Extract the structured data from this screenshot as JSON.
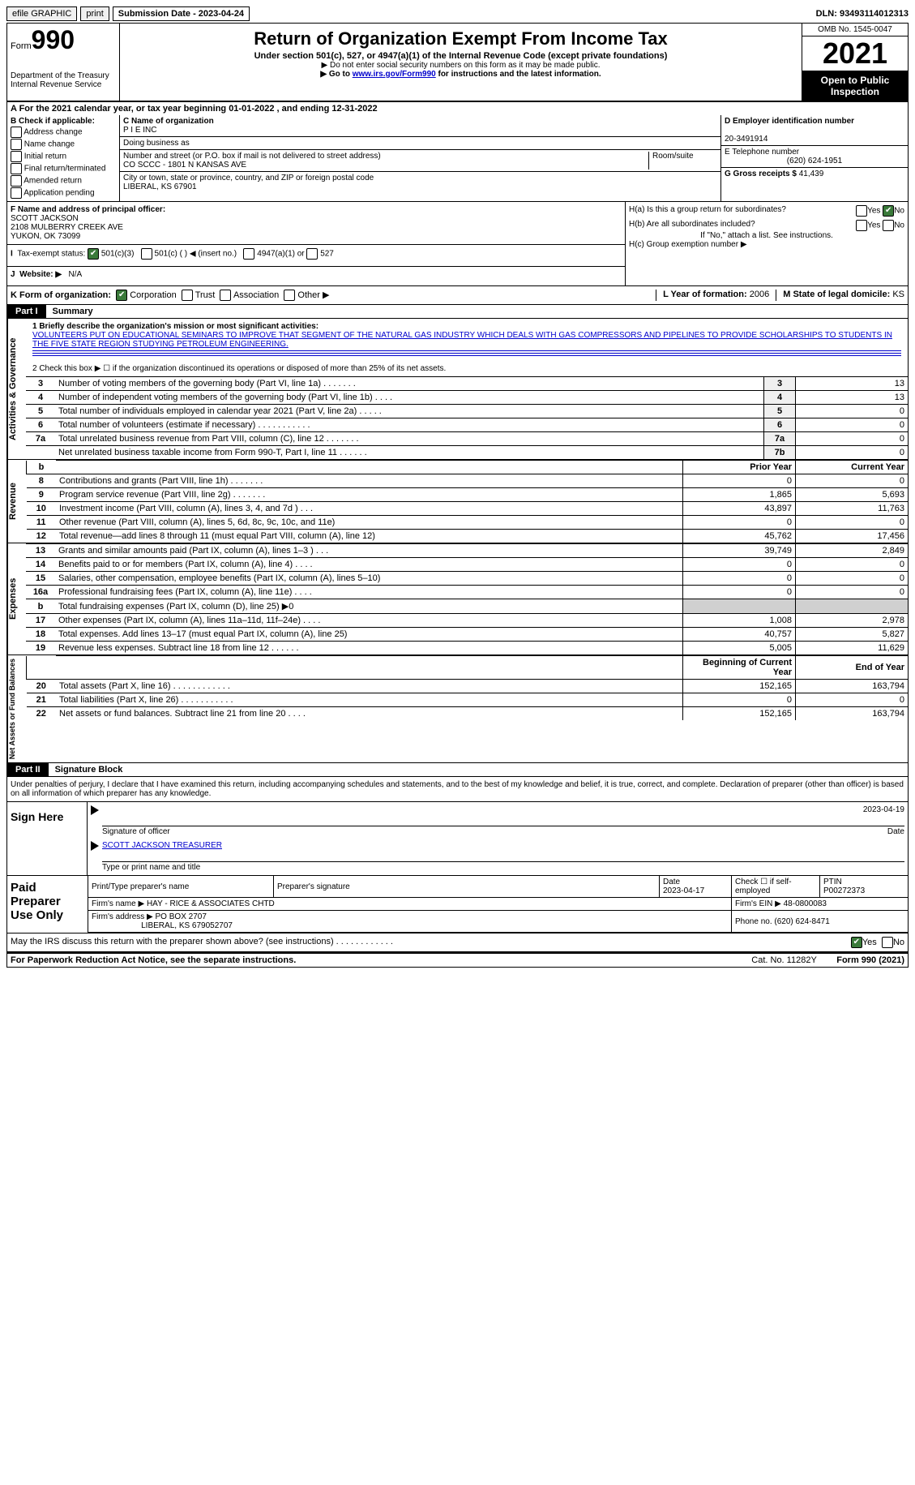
{
  "topbar": {
    "efile": "efile GRAPHIC",
    "print": "print",
    "submission_label": "Submission Date - 2023-04-24",
    "dln": "DLN: 93493114012313"
  },
  "header": {
    "form_label": "Form",
    "form_number": "990",
    "dept": "Department of the Treasury",
    "irs": "Internal Revenue Service",
    "title": "Return of Organization Exempt From Income Tax",
    "subtitle": "Under section 501(c), 527, or 4947(a)(1) of the Internal Revenue Code (except private foundations)",
    "note1": "▶ Do not enter social security numbers on this form as it may be made public.",
    "note2_pre": "▶ Go to ",
    "note2_link": "www.irs.gov/Form990",
    "note2_post": " for instructions and the latest information.",
    "omb": "OMB No. 1545-0047",
    "year": "2021",
    "open": "Open to Public Inspection"
  },
  "row_a": "A For the 2021 calendar year, or tax year beginning 01-01-2022   , and ending 12-31-2022",
  "section_b": {
    "label": "B Check if applicable:",
    "items": [
      "Address change",
      "Name change",
      "Initial return",
      "Final return/terminated",
      "Amended return",
      "Application pending"
    ]
  },
  "section_c": {
    "name_label": "C Name of organization",
    "name": "P I E INC",
    "dba_label": "Doing business as",
    "dba": "",
    "street_label": "Number and street (or P.O. box if mail is not delivered to street address)",
    "room_label": "Room/suite",
    "street": "CO SCCC - 1801 N KANSAS AVE",
    "city_label": "City or town, state or province, country, and ZIP or foreign postal code",
    "city": "LIBERAL, KS  67901"
  },
  "section_d": {
    "ein_label": "D Employer identification number",
    "ein": "20-3491914",
    "phone_label": "E Telephone number",
    "phone": "(620) 624-1951",
    "gross_label": "G Gross receipts $",
    "gross": "41,439"
  },
  "section_f": {
    "label": "F Name and address of principal officer:",
    "name": "SCOTT JACKSON",
    "street": "2108 MULBERRY CREEK AVE",
    "city": "YUKON, OK  73099",
    "tax_exempt_label": "Tax-exempt status:",
    "opt1": "501(c)(3)",
    "opt2": "501(c) (  ) ◀ (insert no.)",
    "opt3": "4947(a)(1) or",
    "opt4": "527",
    "website_label": "Website: ▶",
    "website": "N/A"
  },
  "section_h": {
    "ha": "H(a)  Is this a group return for subordinates?",
    "hb": "H(b)  Are all subordinates included?",
    "hb_note": "If \"No,\" attach a list. See instructions.",
    "hc": "H(c)  Group exemption number ▶",
    "yes": "Yes",
    "no": "No"
  },
  "section_k": {
    "label": "K Form of organization:",
    "opts": [
      "Corporation",
      "Trust",
      "Association",
      "Other ▶"
    ],
    "year_label": "L Year of formation:",
    "year": "2006",
    "state_label": "M State of legal domicile:",
    "state": "KS"
  },
  "part1": {
    "header": "Part I",
    "title": "Summary",
    "line1_label": "1  Briefly describe the organization's mission or most significant activities:",
    "mission": "VOLUNTEERS PUT ON EDUCATIONAL SEMINARS TO IMPROVE THAT SEGMENT OF THE NATURAL GAS INDUSTRY WHICH DEALS WITH GAS COMPRESSORS AND PIPELINES TO PROVIDE SCHOLARSHIPS TO STUDENTS IN THE FIVE STATE REGION STUDYING PETROLEUM ENGINEERING.",
    "line2": "2   Check this box ▶ ☐ if the organization discontinued its operations or disposed of more than 25% of its net assets.",
    "vlabels": {
      "gov": "Activities & Governance",
      "rev": "Revenue",
      "exp": "Expenses",
      "net": "Net Assets or Fund Balances"
    },
    "gov_rows": [
      {
        "n": "3",
        "t": "Number of voting members of the governing body (Part VI, line 1a)   .    .    .    .    .    .    .",
        "box": "3",
        "v": "13"
      },
      {
        "n": "4",
        "t": "Number of independent voting members of the governing body (Part VI, line 1b)  .    .    .    .",
        "box": "4",
        "v": "13"
      },
      {
        "n": "5",
        "t": "Total number of individuals employed in calendar year 2021 (Part V, line 2a)  .    .    .    .    .",
        "box": "5",
        "v": "0"
      },
      {
        "n": "6",
        "t": "Total number of volunteers (estimate if necessary)    .    .    .    .    .    .    .    .    .    .    .",
        "box": "6",
        "v": "0"
      },
      {
        "n": "7a",
        "t": "Total unrelated business revenue from Part VIII, column (C), line 12   .    .    .    .    .    .    .",
        "box": "7a",
        "v": "0"
      },
      {
        "n": "",
        "t": "Net unrelated business taxable income from Form 990-T, Part I, line 11   .    .    .    .    .    .",
        "box": "7b",
        "v": "0"
      }
    ],
    "col_headers": {
      "b": "b",
      "prior": "Prior Year",
      "current": "Current Year"
    },
    "rev_rows": [
      {
        "n": "8",
        "t": "Contributions and grants (Part VIII, line 1h)    .    .    .    .    .    .    .",
        "p": "0",
        "c": "0"
      },
      {
        "n": "9",
        "t": "Program service revenue (Part VIII, line 2g)    .    .    .    .    .    .    .",
        "p": "1,865",
        "c": "5,693"
      },
      {
        "n": "10",
        "t": "Investment income (Part VIII, column (A), lines 3, 4, and 7d )    .    .    .",
        "p": "43,897",
        "c": "11,763"
      },
      {
        "n": "11",
        "t": "Other revenue (Part VIII, column (A), lines 5, 6d, 8c, 9c, 10c, and 11e)",
        "p": "0",
        "c": "0"
      },
      {
        "n": "12",
        "t": "Total revenue—add lines 8 through 11 (must equal Part VIII, column (A), line 12)",
        "p": "45,762",
        "c": "17,456"
      }
    ],
    "exp_rows": [
      {
        "n": "13",
        "t": "Grants and similar amounts paid (Part IX, column (A), lines 1–3 )   .    .    .",
        "p": "39,749",
        "c": "2,849"
      },
      {
        "n": "14",
        "t": "Benefits paid to or for members (Part IX, column (A), line 4)   .    .    .    .",
        "p": "0",
        "c": "0"
      },
      {
        "n": "15",
        "t": "Salaries, other compensation, employee benefits (Part IX, column (A), lines 5–10)",
        "p": "0",
        "c": "0"
      },
      {
        "n": "16a",
        "t": "Professional fundraising fees (Part IX, column (A), line 11e)   .    .    .    .",
        "p": "0",
        "c": "0"
      },
      {
        "n": "b",
        "t": "Total fundraising expenses (Part IX, column (D), line 25) ▶0",
        "p": "",
        "c": "",
        "shaded": true
      },
      {
        "n": "17",
        "t": "Other expenses (Part IX, column (A), lines 11a–11d, 11f–24e)   .    .    .    .",
        "p": "1,008",
        "c": "2,978"
      },
      {
        "n": "18",
        "t": "Total expenses. Add lines 13–17 (must equal Part IX, column (A), line 25)",
        "p": "40,757",
        "c": "5,827"
      },
      {
        "n": "19",
        "t": "Revenue less expenses. Subtract line 18 from line 12  .    .    .    .    .    .",
        "p": "5,005",
        "c": "11,629"
      }
    ],
    "net_headers": {
      "beg": "Beginning of Current Year",
      "end": "End of Year"
    },
    "net_rows": [
      {
        "n": "20",
        "t": "Total assets (Part X, line 16)  .    .    .    .    .    .    .    .    .    .    .    .",
        "p": "152,165",
        "c": "163,794"
      },
      {
        "n": "21",
        "t": "Total liabilities (Part X, line 26)   .    .    .    .    .    .    .    .    .    .    .",
        "p": "0",
        "c": "0"
      },
      {
        "n": "22",
        "t": "Net assets or fund balances. Subtract line 21 from line 20   .    .    .    .",
        "p": "152,165",
        "c": "163,794"
      }
    ]
  },
  "part2": {
    "header": "Part II",
    "title": "Signature Block",
    "penalties": "Under penalties of perjury, I declare that I have examined this return, including accompanying schedules and statements, and to the best of my knowledge and belief, it is true, correct, and complete. Declaration of preparer (other than officer) is based on all information of which preparer has any knowledge.",
    "sign_here": "Sign Here",
    "sig_officer": "Signature of officer",
    "sig_date": "2023-04-19",
    "date_label": "Date",
    "officer_name": "SCOTT JACKSON  TREASURER",
    "type_label": "Type or print name and title"
  },
  "preparer": {
    "label": "Paid Preparer Use Only",
    "print_label": "Print/Type preparer's name",
    "sig_label": "Preparer's signature",
    "date_label": "Date",
    "date": "2023-04-17",
    "check_label": "Check ☐ if self-employed",
    "ptin_label": "PTIN",
    "ptin": "P00272373",
    "firm_name_label": "Firm's name    ▶",
    "firm_name": "HAY - RICE & ASSOCIATES CHTD",
    "firm_ein_label": "Firm's EIN ▶",
    "firm_ein": "48-0800083",
    "firm_addr_label": "Firm's address ▶",
    "firm_addr1": "PO BOX 2707",
    "firm_addr2": "LIBERAL, KS  679052707",
    "firm_phone_label": "Phone no.",
    "firm_phone": "(620) 624-8471"
  },
  "footer": {
    "discuss": "May the IRS discuss this return with the preparer shown above? (see instructions)   .    .    .    .    .    .    .    .    .    .    .    .",
    "yes": "Yes",
    "no": "No",
    "paperwork": "For Paperwork Reduction Act Notice, see the separate instructions.",
    "cat": "Cat. No. 11282Y",
    "form": "Form 990 (2021)"
  }
}
